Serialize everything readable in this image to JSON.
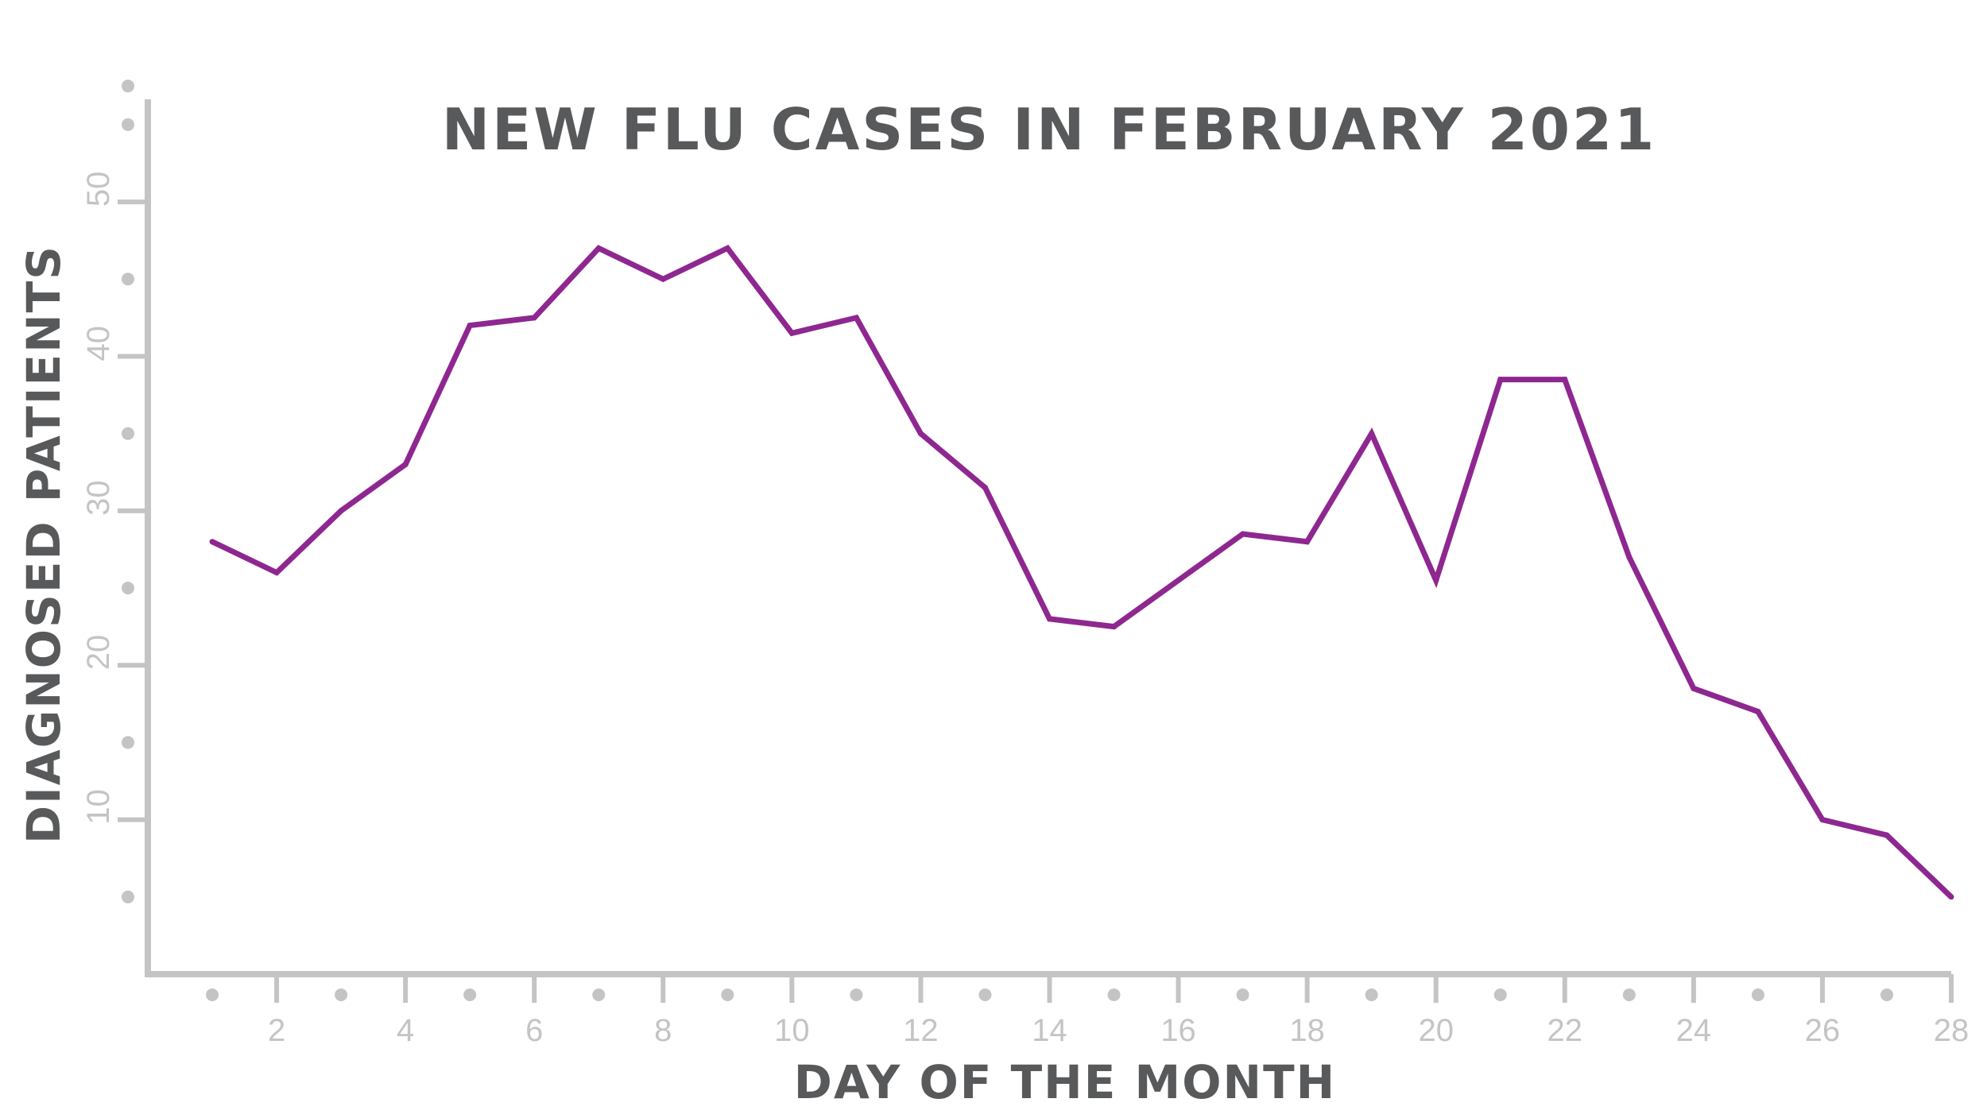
{
  "chart_data": {
    "type": "line",
    "title": "NEW FLU CASES IN FEBRUARY 2021",
    "xlabel": "DAY OF THE MONTH",
    "ylabel": "DIAGNOSED PATIENTS",
    "x": [
      1,
      2,
      3,
      4,
      5,
      6,
      7,
      8,
      9,
      10,
      11,
      12,
      13,
      14,
      15,
      16,
      17,
      18,
      19,
      20,
      21,
      22,
      23,
      24,
      25,
      26,
      27,
      28
    ],
    "series": [
      {
        "values": [
          28,
          26,
          30,
          33,
          42,
          42.5,
          47,
          45,
          47,
          41.5,
          42.5,
          35,
          31.5,
          23,
          22.5,
          25.5,
          28.5,
          28,
          35,
          25.5,
          38.5,
          38.5,
          27,
          18.5,
          17,
          10,
          9,
          5
        ]
      }
    ],
    "xlim": [
      0,
      28
    ],
    "ylim": [
      0,
      57
    ],
    "x_tick_labels": [
      "2",
      "4",
      "6",
      "8",
      "10",
      "12",
      "14",
      "16",
      "18",
      "20",
      "22",
      "24",
      "26",
      "28"
    ],
    "y_tick_labels": [
      "10",
      "20",
      "30",
      "40",
      "50"
    ],
    "grid": false,
    "legend": "none",
    "colors": {
      "line": "#8e2790",
      "axis": "#c4c4c4",
      "tick_label": "#c4c4c4",
      "title": "#58595b"
    }
  }
}
